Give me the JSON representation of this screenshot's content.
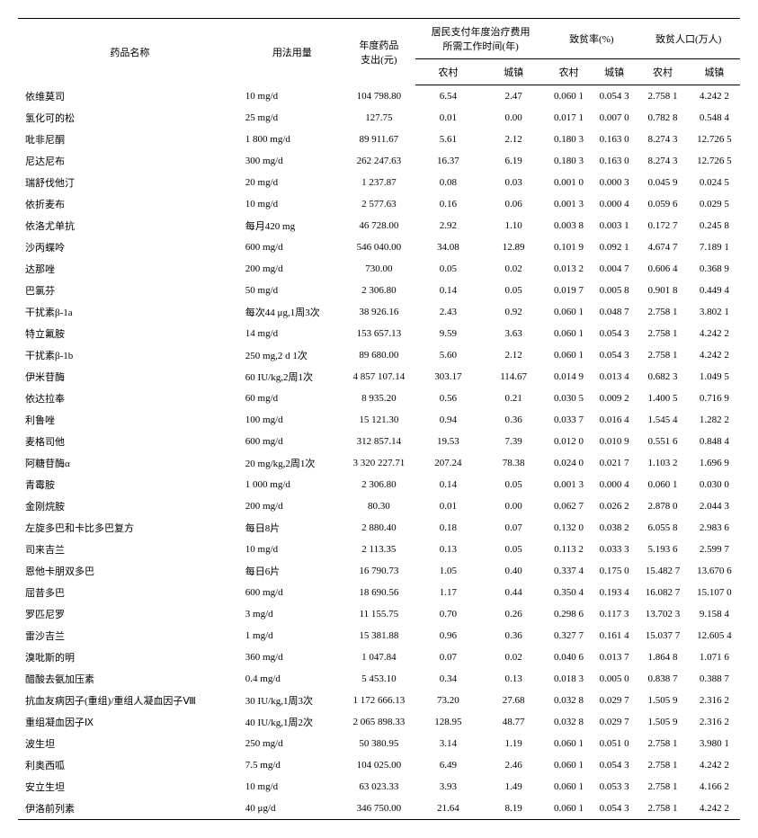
{
  "headers": {
    "drug_name": "药品名称",
    "dosage": "用法用量",
    "annual_cost": "年度药品\n支出(元)",
    "work_time_group": "居民支付年度治疗费用\n所需工作时间(年)",
    "poverty_rate_group": "致贫率(%)",
    "poverty_pop_group": "致贫人口(万人)",
    "rural": "农村",
    "urban": "城镇"
  },
  "rows": [
    {
      "name": "依维莫司",
      "dosage": "10 mg/d",
      "cost": "104 798.80",
      "wt_r": "6.54",
      "wt_u": "2.47",
      "pr_r": "0.060 1",
      "pr_u": "0.054 3",
      "pp_r": "2.758 1",
      "pp_u": "4.242 2"
    },
    {
      "name": "氢化可的松",
      "dosage": "25 mg/d",
      "cost": "127.75",
      "wt_r": "0.01",
      "wt_u": "0.00",
      "pr_r": "0.017 1",
      "pr_u": "0.007 0",
      "pp_r": "0.782 8",
      "pp_u": "0.548 4"
    },
    {
      "name": "吡非尼酮",
      "dosage": "1 800 mg/d",
      "cost": "89 911.67",
      "wt_r": "5.61",
      "wt_u": "2.12",
      "pr_r": "0.180 3",
      "pr_u": "0.163 0",
      "pp_r": "8.274 3",
      "pp_u": "12.726 5"
    },
    {
      "name": "尼达尼布",
      "dosage": "300 mg/d",
      "cost": "262 247.63",
      "wt_r": "16.37",
      "wt_u": "6.19",
      "pr_r": "0.180 3",
      "pr_u": "0.163 0",
      "pp_r": "8.274 3",
      "pp_u": "12.726 5"
    },
    {
      "name": "瑞舒伐他汀",
      "dosage": "20 mg/d",
      "cost": "1 237.87",
      "wt_r": "0.08",
      "wt_u": "0.03",
      "pr_r": "0.001 0",
      "pr_u": "0.000 3",
      "pp_r": "0.045 9",
      "pp_u": "0.024 5"
    },
    {
      "name": "依折麦布",
      "dosage": "10 mg/d",
      "cost": "2 577.63",
      "wt_r": "0.16",
      "wt_u": "0.06",
      "pr_r": "0.001 3",
      "pr_u": "0.000 4",
      "pp_r": "0.059 6",
      "pp_u": "0.029 5"
    },
    {
      "name": "依洛尤单抗",
      "dosage": "每月420 mg",
      "cost": "46 728.00",
      "wt_r": "2.92",
      "wt_u": "1.10",
      "pr_r": "0.003 8",
      "pr_u": "0.003 1",
      "pp_r": "0.172 7",
      "pp_u": "0.245 8"
    },
    {
      "name": "沙丙蝶呤",
      "dosage": "600 mg/d",
      "cost": "546 040.00",
      "wt_r": "34.08",
      "wt_u": "12.89",
      "pr_r": "0.101 9",
      "pr_u": "0.092 1",
      "pp_r": "4.674 7",
      "pp_u": "7.189 1"
    },
    {
      "name": "达那唑",
      "dosage": "200 mg/d",
      "cost": "730.00",
      "wt_r": "0.05",
      "wt_u": "0.02",
      "pr_r": "0.013 2",
      "pr_u": "0.004 7",
      "pp_r": "0.606 4",
      "pp_u": "0.368 9"
    },
    {
      "name": "巴氯芬",
      "dosage": "50 mg/d",
      "cost": "2 306.80",
      "wt_r": "0.14",
      "wt_u": "0.05",
      "pr_r": "0.019 7",
      "pr_u": "0.005 8",
      "pp_r": "0.901 8",
      "pp_u": "0.449 4"
    },
    {
      "name": "干扰素β-1a",
      "dosage": "每次44 μg,1周3次",
      "cost": "38 926.16",
      "wt_r": "2.43",
      "wt_u": "0.92",
      "pr_r": "0.060 1",
      "pr_u": "0.048 7",
      "pp_r": "2.758 1",
      "pp_u": "3.802 1"
    },
    {
      "name": "特立氟胺",
      "dosage": "14 mg/d",
      "cost": "153 657.13",
      "wt_r": "9.59",
      "wt_u": "3.63",
      "pr_r": "0.060 1",
      "pr_u": "0.054 3",
      "pp_r": "2.758 1",
      "pp_u": "4.242 2"
    },
    {
      "name": "干扰素β-1b",
      "dosage": "250 mg,2 d 1次",
      "cost": "89 680.00",
      "wt_r": "5.60",
      "wt_u": "2.12",
      "pr_r": "0.060 1",
      "pr_u": "0.054 3",
      "pp_r": "2.758 1",
      "pp_u": "4.242 2"
    },
    {
      "name": "伊米苷酶",
      "dosage": "60 IU/kg,2周1次",
      "cost": "4 857 107.14",
      "wt_r": "303.17",
      "wt_u": "114.67",
      "pr_r": "0.014 9",
      "pr_u": "0.013 4",
      "pp_r": "0.682 3",
      "pp_u": "1.049 5"
    },
    {
      "name": "依达拉奉",
      "dosage": "60 mg/d",
      "cost": "8 935.20",
      "wt_r": "0.56",
      "wt_u": "0.21",
      "pr_r": "0.030 5",
      "pr_u": "0.009 2",
      "pp_r": "1.400 5",
      "pp_u": "0.716 9"
    },
    {
      "name": "利鲁唑",
      "dosage": "100 mg/d",
      "cost": "15 121.30",
      "wt_r": "0.94",
      "wt_u": "0.36",
      "pr_r": "0.033 7",
      "pr_u": "0.016 4",
      "pp_r": "1.545 4",
      "pp_u": "1.282 2"
    },
    {
      "name": "麦格司他",
      "dosage": "600 mg/d",
      "cost": "312 857.14",
      "wt_r": "19.53",
      "wt_u": "7.39",
      "pr_r": "0.012 0",
      "pr_u": "0.010 9",
      "pp_r": "0.551 6",
      "pp_u": "0.848 4"
    },
    {
      "name": "阿糖苷酶α",
      "dosage": "20 mg/kg,2周1次",
      "cost": "3 320 227.71",
      "wt_r": "207.24",
      "wt_u": "78.38",
      "pr_r": "0.024 0",
      "pr_u": "0.021 7",
      "pp_r": "1.103 2",
      "pp_u": "1.696 9"
    },
    {
      "name": "青霉胺",
      "dosage": "1 000 mg/d",
      "cost": "2 306.80",
      "wt_r": "0.14",
      "wt_u": "0.05",
      "pr_r": "0.001 3",
      "pr_u": "0.000 4",
      "pp_r": "0.060 1",
      "pp_u": "0.030 0"
    },
    {
      "name": "金刚烷胺",
      "dosage": "200 mg/d",
      "cost": "80.30",
      "wt_r": "0.01",
      "wt_u": "0.00",
      "pr_r": "0.062 7",
      "pr_u": "0.026 2",
      "pp_r": "2.878 0",
      "pp_u": "2.044 3"
    },
    {
      "name": "左旋多巴和卡比多巴复方",
      "dosage": "每日8片",
      "cost": "2 880.40",
      "wt_r": "0.18",
      "wt_u": "0.07",
      "pr_r": "0.132 0",
      "pr_u": "0.038 2",
      "pp_r": "6.055 8",
      "pp_u": "2.983 6"
    },
    {
      "name": "司来吉兰",
      "dosage": "10 mg/d",
      "cost": "2 113.35",
      "wt_r": "0.13",
      "wt_u": "0.05",
      "pr_r": "0.113 2",
      "pr_u": "0.033 3",
      "pp_r": "5.193 6",
      "pp_u": "2.599 7"
    },
    {
      "name": "恩他卡朋双多巴",
      "dosage": "每日6片",
      "cost": "16 790.73",
      "wt_r": "1.05",
      "wt_u": "0.40",
      "pr_r": "0.337 4",
      "pr_u": "0.175 0",
      "pp_r": "15.482 7",
      "pp_u": "13.670 6"
    },
    {
      "name": "屈昔多巴",
      "dosage": "600 mg/d",
      "cost": "18 690.56",
      "wt_r": "1.17",
      "wt_u": "0.44",
      "pr_r": "0.350 4",
      "pr_u": "0.193 4",
      "pp_r": "16.082 7",
      "pp_u": "15.107 0"
    },
    {
      "name": "罗匹尼罗",
      "dosage": "3 mg/d",
      "cost": "11 155.75",
      "wt_r": "0.70",
      "wt_u": "0.26",
      "pr_r": "0.298 6",
      "pr_u": "0.117 3",
      "pp_r": "13.702 3",
      "pp_u": "9.158 4"
    },
    {
      "name": "雷沙吉兰",
      "dosage": "1 mg/d",
      "cost": "15 381.88",
      "wt_r": "0.96",
      "wt_u": "0.36",
      "pr_r": "0.327 7",
      "pr_u": "0.161 4",
      "pp_r": "15.037 7",
      "pp_u": "12.605 4"
    },
    {
      "name": "溴吡斯的明",
      "dosage": "360 mg/d",
      "cost": "1 047.84",
      "wt_r": "0.07",
      "wt_u": "0.02",
      "pr_r": "0.040 6",
      "pr_u": "0.013 7",
      "pp_r": "1.864 8",
      "pp_u": "1.071 6"
    },
    {
      "name": "醋酸去氨加压素",
      "dosage": "0.4 mg/d",
      "cost": "5 453.10",
      "wt_r": "0.34",
      "wt_u": "0.13",
      "pr_r": "0.018 3",
      "pr_u": "0.005 0",
      "pp_r": "0.838 7",
      "pp_u": "0.388 7"
    },
    {
      "name": "抗血友病因子(重组)/重组人凝血因子Ⅷ",
      "dosage": "30 IU/kg,1周3次",
      "cost": "1 172 666.13",
      "wt_r": "73.20",
      "wt_u": "27.68",
      "pr_r": "0.032 8",
      "pr_u": "0.029 7",
      "pp_r": "1.505 9",
      "pp_u": "2.316 2"
    },
    {
      "name": "重组凝血因子Ⅸ",
      "dosage": "40 IU/kg,1周2次",
      "cost": "2 065 898.33",
      "wt_r": "128.95",
      "wt_u": "48.77",
      "pr_r": "0.032 8",
      "pr_u": "0.029 7",
      "pp_r": "1.505 9",
      "pp_u": "2.316 2"
    },
    {
      "name": "波生坦",
      "dosage": "250 mg/d",
      "cost": "50 380.95",
      "wt_r": "3.14",
      "wt_u": "1.19",
      "pr_r": "0.060 1",
      "pr_u": "0.051 0",
      "pp_r": "2.758 1",
      "pp_u": "3.980 1"
    },
    {
      "name": "利奥西呱",
      "dosage": "7.5 mg/d",
      "cost": "104 025.00",
      "wt_r": "6.49",
      "wt_u": "2.46",
      "pr_r": "0.060 1",
      "pr_u": "0.054 3",
      "pp_r": "2.758 1",
      "pp_u": "4.242 2"
    },
    {
      "name": "安立生坦",
      "dosage": "10 mg/d",
      "cost": "63 023.33",
      "wt_r": "3.93",
      "wt_u": "1.49",
      "pr_r": "0.060 1",
      "pr_u": "0.053 3",
      "pp_r": "2.758 1",
      "pp_u": "4.166 2"
    },
    {
      "name": "伊洛前列素",
      "dosage": "40 μg/d",
      "cost": "346 750.00",
      "wt_r": "21.64",
      "wt_u": "8.19",
      "pr_r": "0.060 1",
      "pr_u": "0.054 3",
      "pp_r": "2.758 1",
      "pp_u": "4.242 2"
    }
  ]
}
